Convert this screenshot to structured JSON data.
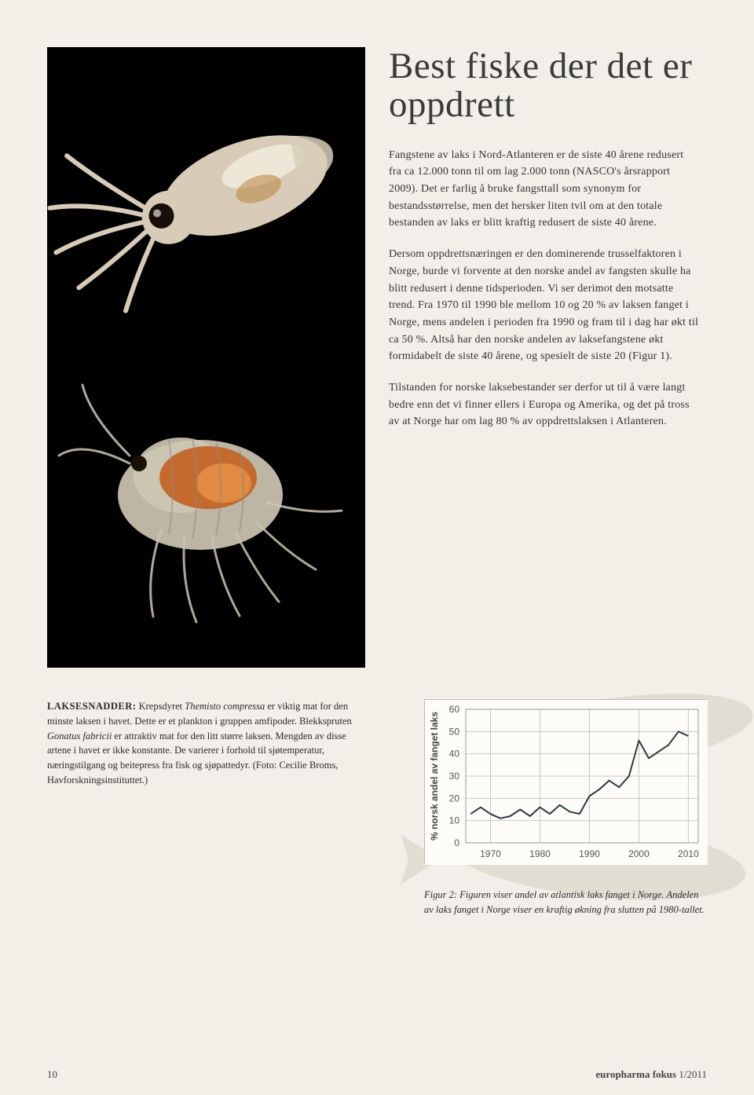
{
  "title": "Best fiske der det er oppdrett",
  "lede": "Fangstene av laks i Nord-Atlanteren er de siste 40 årene redusert fra ca 12.000 tonn til om lag 2.000 tonn (NASCO's årsrapport 2009). Det er farlig å bruke fangsttall som synonym for bestandsstørrelse, men det hersker liten tvil om at den totale bestanden av laks er blitt kraftig redusert de siste 40 årene.",
  "p2": "Dersom oppdrettsnæringen er den dominerende trusselfaktoren i Norge, burde vi forvente at den norske andel av fangsten skulle ha blitt redusert i denne tidsperioden. Vi ser derimot den motsatte trend. Fra 1970 til 1990 ble mellom 10 og 20 % av laksen fanget i Norge, mens andelen i perioden fra 1990 og fram til i dag har økt til ca 50 %. Altså har den norske andelen av laksefangstene økt formidabelt de siste 40 årene, og spesielt de siste 20 (Figur 1).",
  "p3": "Tilstanden for norske laksebestander ser derfor ut til å være langt bedre enn det vi finner ellers i Europa og Amerika, og det på tross av at Norge har om lag 80 % av oppdrettslaksen i Atlanteren.",
  "caption_label": "LAKSESNADDER:",
  "caption_t1": " Krepsdyret ",
  "caption_i1": "Themisto compressa",
  "caption_t2": " er viktig mat for den minste laksen i havet. Dette er et plankton i gruppen amfipoder. Blekkspruten ",
  "caption_i2": "Gonatus fabricii",
  "caption_t3": " er attraktiv mat for den litt større laksen. Mengden av disse artene i havet er ikke konstante. De varierer i forhold til sjøtemperatur, næringstilgang og beitepress fra fisk og sjøpattedyr. (Foto: Cecilie Broms, Havforskningsinstituttet.)",
  "figcap": "Figur 2: Figuren viser andel av atlantisk laks fanget i Norge. Andelen av laks fanget i Norge viser en kraftig økning fra slutten på 1980-tallet.",
  "page_num": "10",
  "pub": "europharma fokus",
  "issue": " 1/2011",
  "chart": {
    "type": "line",
    "ylabel": "% norsk andel av fanget laks",
    "yticks": [
      0,
      10,
      20,
      30,
      40,
      50,
      60
    ],
    "xticks": [
      1970,
      1980,
      1990,
      2000,
      2010
    ],
    "xlim": [
      1965,
      2012
    ],
    "ylim": [
      0,
      60
    ],
    "grid_color": "#c9c7c0",
    "background_color": "#fdfcf9",
    "line_color": "#2f3a3f",
    "line_width": 2,
    "label_fontsize": 12,
    "tick_fontsize": 12,
    "points": [
      {
        "x": 1966,
        "y": 13
      },
      {
        "x": 1968,
        "y": 16
      },
      {
        "x": 1970,
        "y": 13
      },
      {
        "x": 1972,
        "y": 11
      },
      {
        "x": 1974,
        "y": 12
      },
      {
        "x": 1976,
        "y": 15
      },
      {
        "x": 1978,
        "y": 12
      },
      {
        "x": 1980,
        "y": 16
      },
      {
        "x": 1982,
        "y": 13
      },
      {
        "x": 1984,
        "y": 17
      },
      {
        "x": 1986,
        "y": 14
      },
      {
        "x": 1988,
        "y": 13
      },
      {
        "x": 1990,
        "y": 21
      },
      {
        "x": 1992,
        "y": 24
      },
      {
        "x": 1994,
        "y": 28
      },
      {
        "x": 1996,
        "y": 25
      },
      {
        "x": 1998,
        "y": 30
      },
      {
        "x": 2000,
        "y": 46
      },
      {
        "x": 2002,
        "y": 38
      },
      {
        "x": 2004,
        "y": 41
      },
      {
        "x": 2006,
        "y": 44
      },
      {
        "x": 2008,
        "y": 50
      },
      {
        "x": 2010,
        "y": 48
      }
    ]
  },
  "marine": {
    "bg": "#000000",
    "squid_body": "#d8ccb8",
    "squid_highlight": "#f3ede0",
    "squid_eye": "#1a0f08",
    "squid_spot": "#b8843f",
    "amphipod_body": "#cdc6b3",
    "amphipod_orange": "#c46a2e",
    "amphipod_orange_light": "#e08a42",
    "edge": "#888"
  }
}
